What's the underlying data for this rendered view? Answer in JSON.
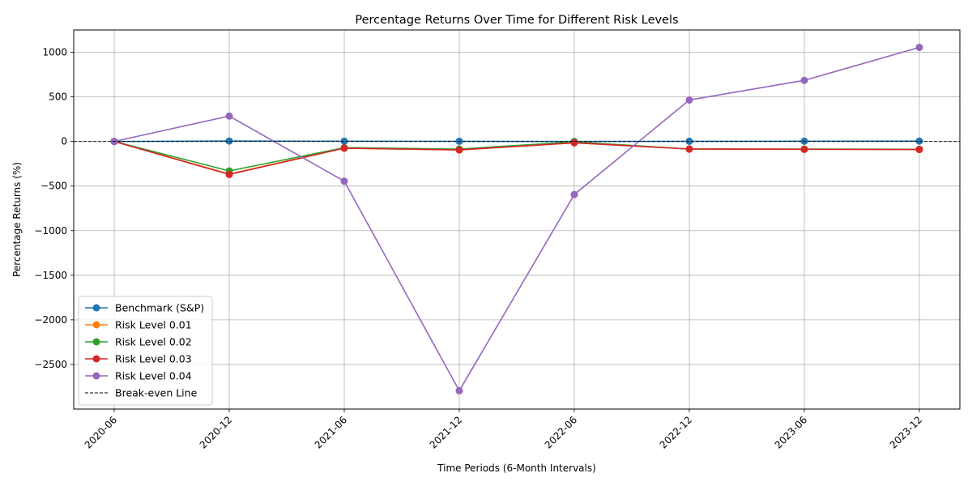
{
  "chart_data": {
    "type": "line",
    "title": "Percentage Returns Over Time for Different Risk Levels",
    "xlabel": "Time Periods (6-Month Intervals)",
    "ylabel": "Percentage Returns (%)",
    "categories": [
      "2020-06",
      "2020-12",
      "2021-06",
      "2021-12",
      "2022-06",
      "2022-12",
      "2023-06",
      "2023-12"
    ],
    "ylim": [
      -3000,
      1250
    ],
    "yticks": [
      -2500,
      -2000,
      -1500,
      -1000,
      -500,
      0,
      500,
      1000
    ],
    "ytick_labels": [
      "−2500",
      "−2000",
      "−1500",
      "−1000",
      "−500",
      "0",
      "500",
      "1000"
    ],
    "grid": true,
    "legend_position": "lower-left",
    "series": [
      {
        "name": "Benchmark (S&P)",
        "color": "#1f77b4",
        "values": [
          0,
          5,
          3,
          2,
          0,
          2,
          3,
          4
        ]
      },
      {
        "name": "Risk Level 0.01",
        "color": "#ff7f0e",
        "values": [
          0,
          -365,
          -75,
          -95,
          -15,
          -85,
          -88,
          -90
        ]
      },
      {
        "name": "Risk Level 0.02",
        "color": "#2ca02c",
        "values": [
          0,
          -330,
          -70,
          -85,
          -5,
          -85,
          -85,
          -88
        ]
      },
      {
        "name": "Risk Level 0.03",
        "color": "#d62728",
        "values": [
          0,
          -370,
          -75,
          -95,
          -15,
          -85,
          -88,
          -90
        ]
      },
      {
        "name": "Risk Level 0.04",
        "color": "#9467bd",
        "values": [
          0,
          285,
          -445,
          -2795,
          -595,
          465,
          685,
          1055
        ]
      }
    ],
    "reference_line": {
      "name": "Break-even Line",
      "y": 0,
      "color": "#000000"
    }
  }
}
